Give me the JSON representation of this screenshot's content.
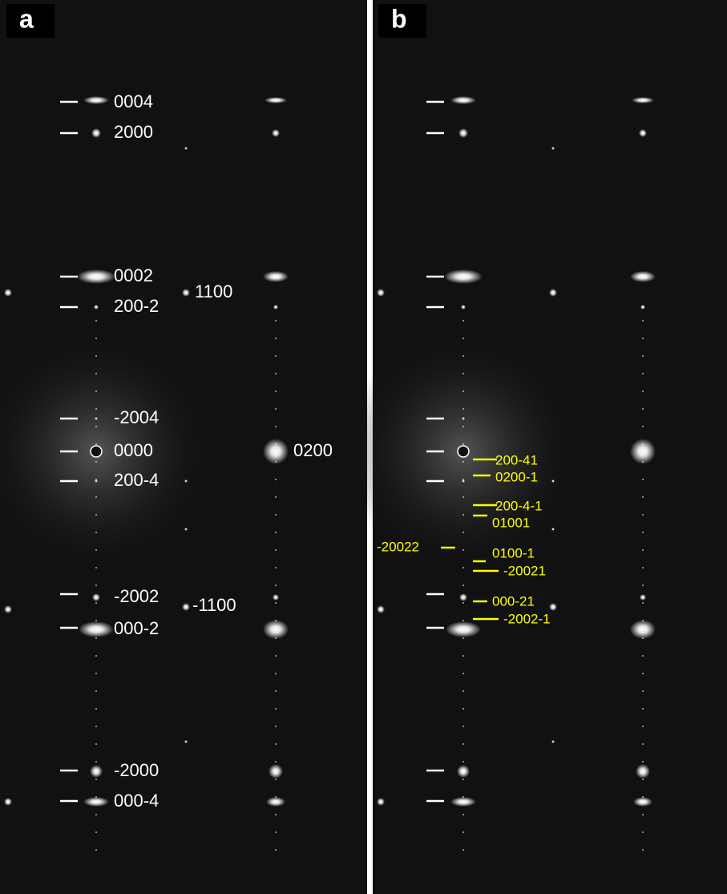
{
  "panels": [
    {
      "label": "a",
      "annotations": [
        "0004",
        "2000",
        "0002",
        "200-2",
        "1100",
        "-2004",
        "0000",
        "200-4",
        "0200",
        "-2002",
        "-1100",
        "000-2",
        "-2000",
        "000-4"
      ]
    },
    {
      "label": "b",
      "annotations": [
        "200-41",
        "0200-1",
        "200-4-1",
        "01001",
        "-20022",
        "0100-1",
        "-20021",
        "000-21",
        "-2002-1"
      ]
    }
  ]
}
